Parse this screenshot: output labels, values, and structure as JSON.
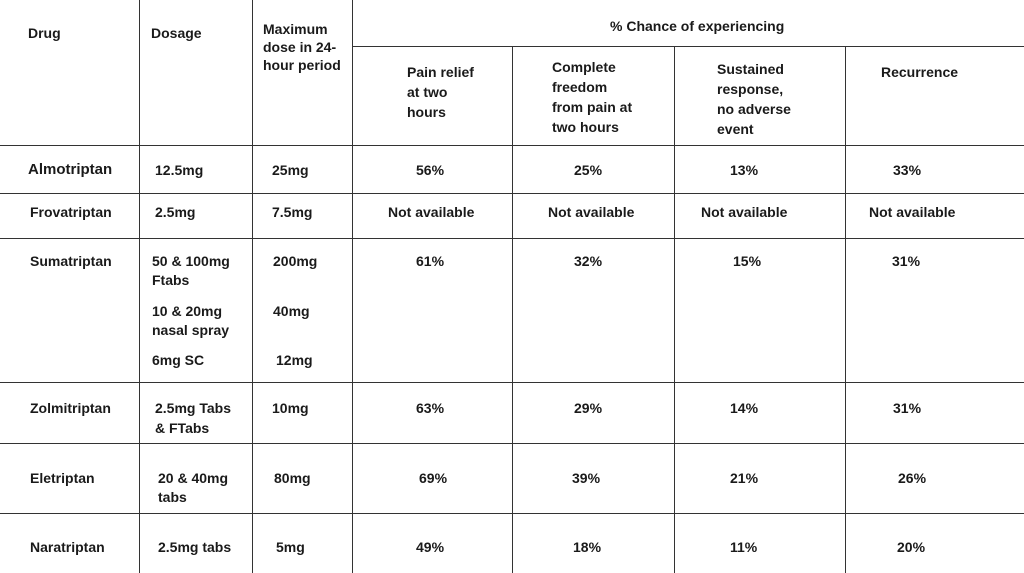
{
  "headers": {
    "drug": "Drug",
    "dosage": "Dosage",
    "max_dose": [
      "Maximum",
      "dose in 24-",
      "hour period"
    ],
    "chance": "% Chance of experiencing",
    "pain_relief": [
      "Pain relief",
      "at two",
      "hours"
    ],
    "complete_freedom": [
      "Complete",
      "freedom",
      "from pain at",
      "two hours"
    ],
    "sustained": [
      "Sustained",
      "response,",
      "no adverse",
      "event"
    ],
    "recurrence": "Recurrence"
  },
  "rows": [
    {
      "drug": "Almotriptan",
      "dosage": [
        "12.5mg"
      ],
      "max": [
        "25mg"
      ],
      "pain_relief": "56%",
      "freedom": "25%",
      "sustained": "13%",
      "recurrence": "33%"
    },
    {
      "drug": "Frovatriptan",
      "dosage": [
        "2.5mg"
      ],
      "max": [
        "7.5mg"
      ],
      "pain_relief": "Not available",
      "freedom": "Not available",
      "sustained": "Not available",
      "recurrence": "Not available"
    },
    {
      "drug": "Sumatriptan",
      "dosage": [
        "50 & 100mg",
        "Ftabs",
        "10 & 20mg",
        "nasal spray",
        "6mg SC"
      ],
      "max": [
        "200mg",
        "40mg",
        "12mg"
      ],
      "pain_relief": "61%",
      "freedom": "32%",
      "sustained": "15%",
      "recurrence": "31%"
    },
    {
      "drug": "Zolmitriptan",
      "dosage": [
        "2.5mg Tabs",
        "& FTabs"
      ],
      "max": [
        "10mg"
      ],
      "pain_relief": "63%",
      "freedom": "29%",
      "sustained": "14%",
      "recurrence": "31%"
    },
    {
      "drug": "Eletriptan",
      "dosage": [
        "20 & 40mg",
        "tabs"
      ],
      "max": [
        "80mg"
      ],
      "pain_relief": "69%",
      "freedom": "39%",
      "sustained": "21%",
      "recurrence": "26%"
    },
    {
      "drug": "Naratriptan",
      "dosage": [
        "2.5mg tabs"
      ],
      "max": [
        "5mg"
      ],
      "pain_relief": "49%",
      "freedom": "18%",
      "sustained": "11%",
      "recurrence": "20%"
    }
  ]
}
